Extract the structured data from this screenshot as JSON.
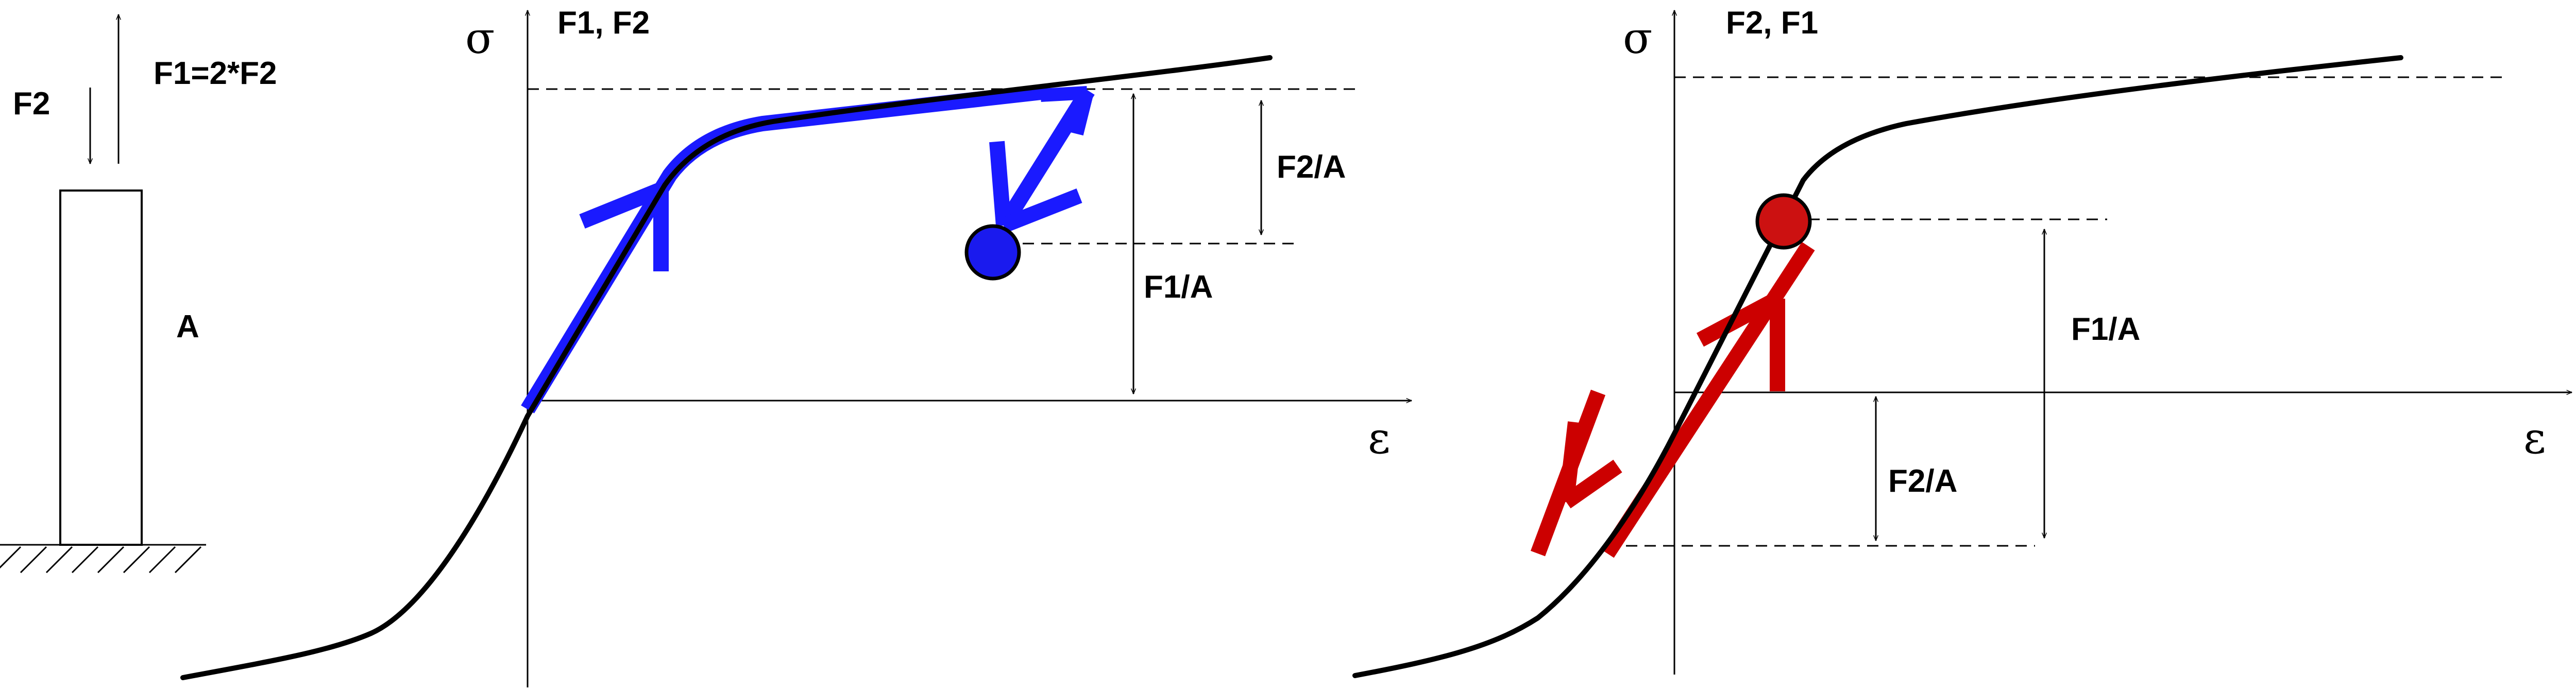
{
  "specimen": {
    "force_small_label": "F2",
    "force_large_label": "F1=2*F2",
    "area_label": "A"
  },
  "panel_left": {
    "y_axis_label": "σ",
    "x_axis_label": "ε",
    "sequence_label": "F1, F2",
    "upper_gap_label": "F2/A",
    "total_gap_label": "F1/A",
    "colors": {
      "path": "#1a1aff",
      "marker": "#1a1aee"
    }
  },
  "panel_right": {
    "y_axis_label": "σ",
    "x_axis_label": "ε",
    "sequence_label": "F2, F1",
    "lower_gap_label": "F2/A",
    "total_gap_label": "F1/A",
    "colors": {
      "path": "#cc0000",
      "marker": "#cc1111"
    }
  }
}
